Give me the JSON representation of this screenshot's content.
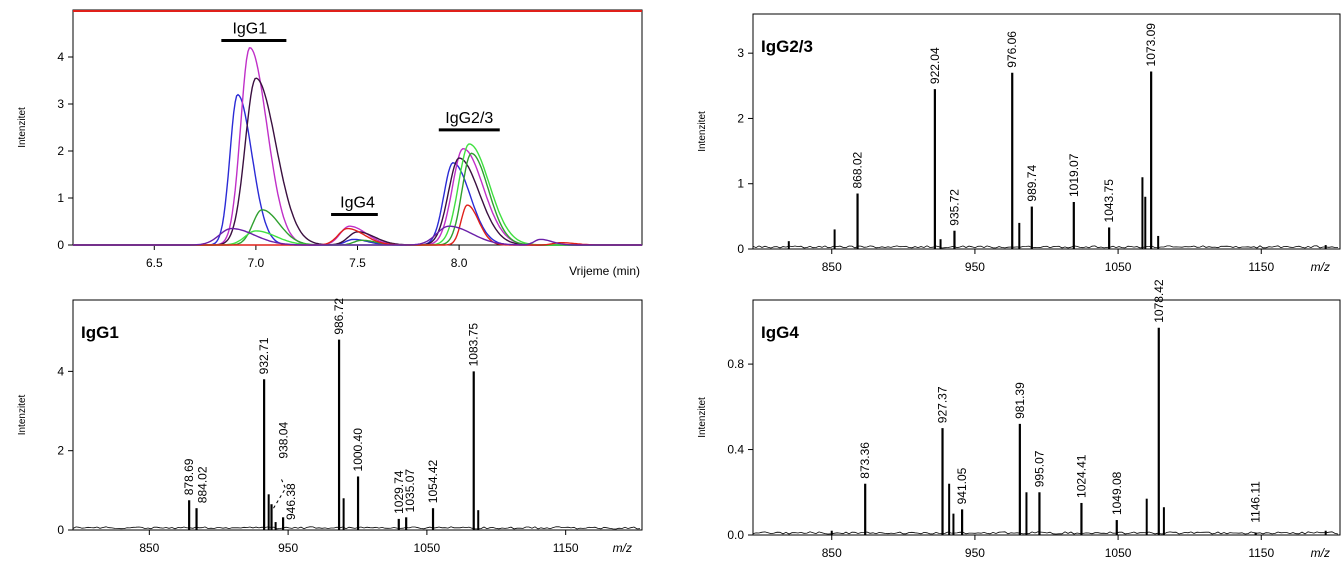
{
  "colors": {
    "axis": "#000000",
    "trace_red": "#e0201a",
    "trace_purple": "#6a1fa8",
    "trace_magenta": "#c030c8",
    "trace_blue": "#2b2bd6",
    "trace_green": "#2fa02f",
    "trace_light_green": "#40e040",
    "trace_dark": "#3a1040"
  },
  "chart_data": [
    {
      "id": "chromatogram",
      "type": "line",
      "title": "",
      "xlabel": "Vrijeme (min)",
      "ylabel": "Intenzitet",
      "xlim": [
        6.1,
        8.9
      ],
      "ylim": [
        0,
        5.0
      ],
      "xticks": [
        "6.5",
        "7.0",
        "7.5",
        "8.0"
      ],
      "yticks": [
        "0",
        "1",
        "2",
        "3",
        "4"
      ],
      "group_labels": [
        {
          "text": "IgG1",
          "x": 6.97,
          "x_from": 6.83,
          "x_to": 7.15,
          "y": 4.35
        },
        {
          "text": "IgG4",
          "x": 7.5,
          "x_from": 7.37,
          "x_to": 7.6,
          "y": 0.65
        },
        {
          "text": "IgG2/3",
          "x": 8.05,
          "x_from": 7.9,
          "x_to": 8.2,
          "y": 2.45
        }
      ],
      "series": [
        {
          "color": "trace_blue",
          "peaks": [
            [
              6.91,
              3.2,
              0.05
            ],
            [
              7.48,
              0.12,
              0.05
            ],
            [
              7.97,
              1.75,
              0.06
            ]
          ]
        },
        {
          "color": "trace_magenta",
          "peaks": [
            [
              6.97,
              4.2,
              0.06
            ],
            [
              7.46,
              0.4,
              0.06
            ],
            [
              8.02,
              2.05,
              0.07
            ]
          ]
        },
        {
          "color": "trace_dark",
          "peaks": [
            [
              7.0,
              3.55,
              0.07
            ],
            [
              7.5,
              0.28,
              0.06
            ],
            [
              8.0,
              1.85,
              0.07
            ]
          ]
        },
        {
          "color": "trace_green",
          "peaks": [
            [
              7.03,
              0.75,
              0.06
            ],
            [
              7.52,
              0.1,
              0.05
            ],
            [
              8.06,
              1.95,
              0.06
            ]
          ]
        },
        {
          "color": "trace_light_green",
          "peaks": [
            [
              7.0,
              0.3,
              0.07
            ],
            [
              8.05,
              2.15,
              0.07
            ]
          ]
        },
        {
          "color": "trace_red",
          "peaks": [
            [
              7.45,
              0.35,
              0.06
            ],
            [
              8.04,
              0.85,
              0.04
            ],
            [
              8.5,
              0.05,
              0.05
            ]
          ]
        },
        {
          "color": "trace_purple",
          "peaks": [
            [
              6.88,
              0.35,
              0.08
            ],
            [
              7.95,
              0.4,
              0.08
            ],
            [
              8.4,
              0.12,
              0.04
            ]
          ]
        }
      ]
    },
    {
      "id": "IgG2/3",
      "type": "bar",
      "title": "IgG2/3",
      "xlabel": "m/z",
      "ylabel": "Intenzitet",
      "xlim": [
        795,
        1205
      ],
      "ylim": [
        0,
        3.6
      ],
      "xticks": [
        "850",
        "950",
        "1050",
        "1150"
      ],
      "yticks": [
        "0",
        "1",
        "2",
        "3"
      ],
      "peaks": [
        {
          "mz": 868.02,
          "intensity": 0.85,
          "label": "868.02"
        },
        {
          "mz": 922.04,
          "intensity": 2.45,
          "label": "922.04"
        },
        {
          "mz": 935.72,
          "intensity": 0.28,
          "label": "935.72"
        },
        {
          "mz": 976.06,
          "intensity": 2.7,
          "label": "976.06"
        },
        {
          "mz": 989.74,
          "intensity": 0.65,
          "label": "989.74"
        },
        {
          "mz": 1019.07,
          "intensity": 0.72,
          "label": "1019.07"
        },
        {
          "mz": 1043.75,
          "intensity": 0.33,
          "label": "1043.75"
        },
        {
          "mz": 1073.09,
          "intensity": 2.72,
          "label": "1073.09"
        }
      ],
      "minor": [
        [
          820,
          0.12
        ],
        [
          852,
          0.3
        ],
        [
          926,
          0.15
        ],
        [
          981,
          0.4
        ],
        [
          1067,
          1.1
        ],
        [
          1069,
          0.8
        ],
        [
          1078,
          0.2
        ],
        [
          1195,
          0.06
        ]
      ]
    },
    {
      "id": "IgG1",
      "type": "bar",
      "title": "IgG1",
      "xlabel": "m/z",
      "ylabel": "Intenzitet",
      "xlim": [
        795,
        1205
      ],
      "ylim": [
        0,
        5.8
      ],
      "xticks": [
        "850",
        "950",
        "1050",
        "1150"
      ],
      "yticks": [
        "0",
        "2",
        "4"
      ],
      "peaks": [
        {
          "mz": 878.69,
          "intensity": 0.75,
          "label": "878.69"
        },
        {
          "mz": 884.02,
          "intensity": 0.55,
          "label": "884.02"
        },
        {
          "mz": 932.71,
          "intensity": 3.8,
          "label": "932.71"
        },
        {
          "mz": 946.38,
          "intensity": 0.32,
          "label": "946.38"
        },
        {
          "mz": 938.04,
          "intensity": 0.65,
          "label": "938.04"
        },
        {
          "mz": 986.72,
          "intensity": 4.8,
          "label": "986.72"
        },
        {
          "mz": 1000.4,
          "intensity": 1.35,
          "label": "1000.40"
        },
        {
          "mz": 1029.74,
          "intensity": 0.28,
          "label": "1029.74"
        },
        {
          "mz": 1035.07,
          "intensity": 0.32,
          "label": "1035.07"
        },
        {
          "mz": 1054.42,
          "intensity": 0.55,
          "label": "1054.42"
        },
        {
          "mz": 1083.75,
          "intensity": 4.0,
          "label": "1083.75"
        }
      ],
      "minor": [
        [
          936,
          0.9
        ],
        [
          941,
          0.2
        ],
        [
          990,
          0.8
        ],
        [
          1087,
          0.5
        ]
      ]
    },
    {
      "id": "IgG4",
      "type": "bar",
      "title": "IgG4",
      "xlabel": "m/z",
      "ylabel": "Intenzitet",
      "xlim": [
        795,
        1205
      ],
      "ylim": [
        0,
        1.1
      ],
      "xticks": [
        "850",
        "950",
        "1050",
        "1150"
      ],
      "yticks": [
        "0.0",
        "0.4",
        "0.8"
      ],
      "peaks": [
        {
          "mz": 873.36,
          "intensity": 0.24,
          "label": "873.36"
        },
        {
          "mz": 927.37,
          "intensity": 0.5,
          "label": "927.37"
        },
        {
          "mz": 941.05,
          "intensity": 0.12,
          "label": "941.05"
        },
        {
          "mz": 981.39,
          "intensity": 0.52,
          "label": "981.39"
        },
        {
          "mz": 995.07,
          "intensity": 0.2,
          "label": "995.07"
        },
        {
          "mz": 1024.41,
          "intensity": 0.15,
          "label": "1024.41"
        },
        {
          "mz": 1049.08,
          "intensity": 0.07,
          "label": "1049.08"
        },
        {
          "mz": 1078.42,
          "intensity": 0.97,
          "label": "1078.42"
        },
        {
          "mz": 1146.11,
          "intensity": 0.01,
          "label": "1146.11"
        }
      ],
      "minor": [
        [
          932,
          0.24
        ],
        [
          935,
          0.1
        ],
        [
          986,
          0.2
        ],
        [
          1070,
          0.17
        ],
        [
          1082,
          0.13
        ],
        [
          850,
          0.02
        ],
        [
          1195,
          0.02
        ]
      ]
    }
  ]
}
